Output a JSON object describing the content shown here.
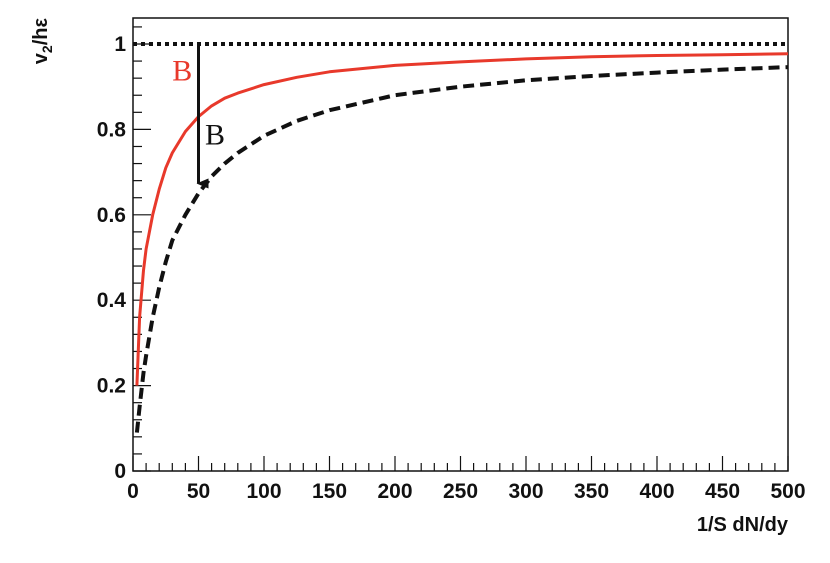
{
  "chart_data": {
    "type": "line",
    "title": "",
    "xlabel": "1/S dN/dy",
    "ylabel": {
      "main": "v",
      "sub": "2",
      "rest": "/hε"
    },
    "xlim": [
      0,
      500
    ],
    "ylim": [
      0,
      1.05
    ],
    "x_ticks": [
      0,
      50,
      100,
      150,
      200,
      250,
      300,
      350,
      400,
      450,
      500
    ],
    "y_ticks": [
      0,
      0.2,
      0.4,
      0.6,
      0.8,
      1
    ],
    "x_tick_labels": [
      "0",
      "50",
      "100",
      "150",
      "200",
      "250",
      "300",
      "350",
      "400",
      "450",
      "500"
    ],
    "y_tick_labels": [
      "0",
      "0.2",
      "0.4",
      "0.6",
      "0.8",
      "1"
    ],
    "grid": false,
    "colors": {
      "red": "#e8392b",
      "black": "#111111"
    },
    "series": [
      {
        "style": "dotted",
        "color": "#111111",
        "x": [
          0,
          500
        ],
        "y": [
          1,
          1
        ]
      },
      {
        "style": "solid",
        "color": "#e8392b",
        "x": [
          3,
          5,
          8,
          10,
          15,
          20,
          25,
          30,
          40,
          50,
          60,
          70,
          80,
          100,
          125,
          150,
          200,
          250,
          300,
          350,
          400,
          450,
          500
        ],
        "y": [
          0.2,
          0.36,
          0.47,
          0.52,
          0.6,
          0.66,
          0.71,
          0.745,
          0.795,
          0.83,
          0.855,
          0.873,
          0.885,
          0.905,
          0.922,
          0.935,
          0.95,
          0.958,
          0.965,
          0.97,
          0.973,
          0.975,
          0.977
        ]
      },
      {
        "style": "dashed",
        "color": "#111111",
        "x": [
          3,
          5,
          8,
          10,
          15,
          20,
          25,
          30,
          40,
          50,
          60,
          70,
          80,
          100,
          125,
          150,
          200,
          250,
          300,
          350,
          400,
          450,
          500
        ],
        "y": [
          0.09,
          0.15,
          0.23,
          0.27,
          0.36,
          0.43,
          0.49,
          0.54,
          0.6,
          0.65,
          0.69,
          0.72,
          0.745,
          0.785,
          0.82,
          0.845,
          0.88,
          0.9,
          0.915,
          0.925,
          0.933,
          0.94,
          0.946
        ]
      }
    ],
    "annotations": [
      {
        "text": "B",
        "color": "#e8392b",
        "x": 30,
        "y": 0.915
      },
      {
        "text": "B",
        "color": "#111111",
        "x": 55,
        "y": 0.765
      }
    ],
    "arrows": [
      {
        "color": "#111111",
        "x": 50,
        "y_from": 1,
        "y_to": 0.65
      }
    ]
  }
}
